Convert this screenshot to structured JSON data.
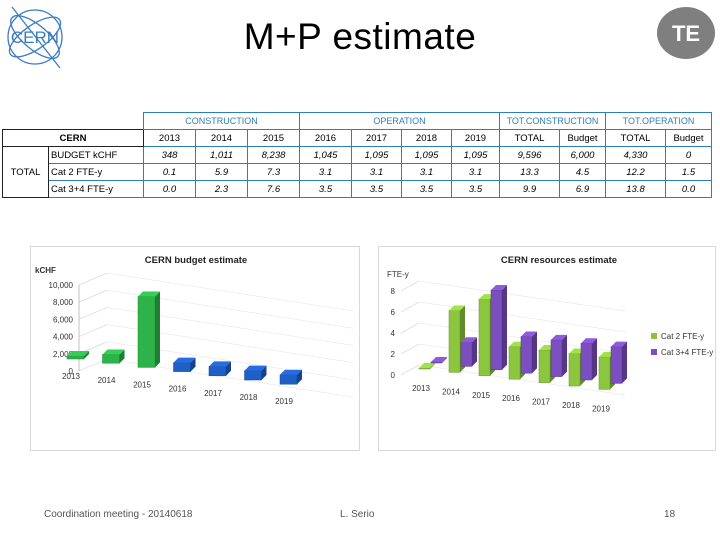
{
  "title": "M+P estimate",
  "logos": {
    "left": "CERN",
    "right": "TE"
  },
  "table": {
    "groups": [
      "CONSTRUCTION",
      "OPERATION",
      "TOT.CONSTRUCTION",
      "TOT.OPERATION"
    ],
    "corner": "CERN",
    "columns": [
      "2013",
      "2014",
      "2015",
      "2016",
      "2017",
      "2018",
      "2019",
      "TOTAL",
      "Budget",
      "TOTAL",
      "Budget"
    ],
    "total_label": "TOTAL",
    "rows": [
      {
        "label": "BUDGET kCHF",
        "values": [
          "348",
          "1,011",
          "8,238",
          "1,045",
          "1,095",
          "1,095",
          "1,095",
          "9,596",
          "6,000",
          "4,330",
          "0"
        ]
      },
      {
        "label": "Cat 2 FTE-y",
        "values": [
          "0.1",
          "5.9",
          "7.3",
          "3.1",
          "3.1",
          "3.1",
          "3.1",
          "13.3",
          "4.5",
          "12.2",
          "1.5"
        ]
      },
      {
        "label": "Cat 3+4 FTE-y",
        "values": [
          "0.0",
          "2.3",
          "7.6",
          "3.5",
          "3.5",
          "3.5",
          "3.5",
          "9.9",
          "6.9",
          "13.8",
          "0.0"
        ]
      }
    ]
  },
  "chart_data": [
    {
      "type": "bar",
      "title": "CERN budget estimate",
      "ylabel": "kCHF",
      "categories": [
        "2013",
        "2014",
        "2015",
        "2016",
        "2017",
        "2018",
        "2019"
      ],
      "values": [
        348,
        1011,
        8238,
        1045,
        1095,
        1095,
        1095
      ],
      "ylim": [
        0,
        10000
      ],
      "yticks": [
        "0",
        "2,000",
        "4,000",
        "6,000",
        "8,000",
        "10,000"
      ],
      "colors": [
        "#2db34a",
        "#2db34a",
        "#2db34a",
        "#1f5fc6",
        "#1f5fc6",
        "#1f5fc6",
        "#1f5fc6"
      ],
      "grid": true
    },
    {
      "type": "bar",
      "title": "CERN resources estimate",
      "ylabel": "FTE-y",
      "categories": [
        "2013",
        "2014",
        "2015",
        "2016",
        "2017",
        "2018",
        "2019"
      ],
      "series": [
        {
          "name": "Cat 2 FTE-y",
          "values": [
            0.1,
            5.9,
            7.3,
            3.1,
            3.1,
            3.1,
            3.1
          ],
          "color": "#8cc63f"
        },
        {
          "name": "Cat 3+4 FTE-y",
          "values": [
            0.0,
            2.3,
            7.6,
            3.5,
            3.5,
            3.5,
            3.5
          ],
          "color": "#7b4fbf"
        }
      ],
      "ylim": [
        0,
        8
      ],
      "yticks": [
        "0",
        "2",
        "4",
        "6",
        "8"
      ],
      "legend": "right",
      "grid": true
    }
  ],
  "footer": {
    "left": "Coordination meeting - 20140618",
    "center": "L. Serio",
    "page": "18"
  }
}
